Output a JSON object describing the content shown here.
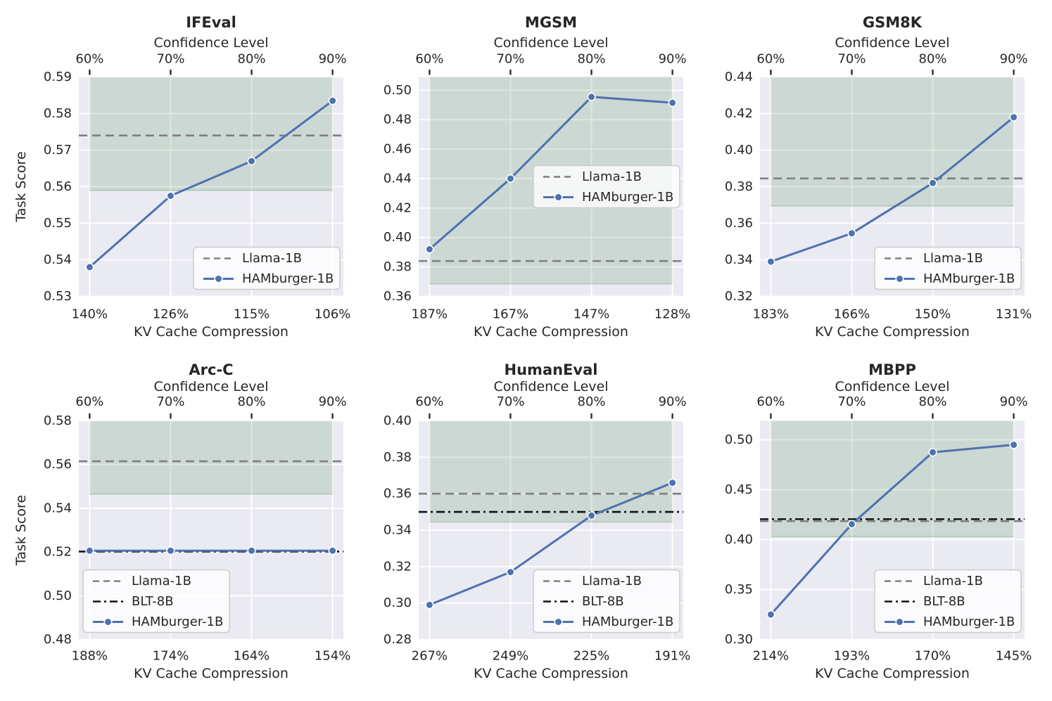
{
  "figure": {
    "ylabel": "Task Score",
    "top_axis_label": "Confidence Level",
    "bottom_axis_label": "KV Cache Compression",
    "confidence_levels": [
      "60%",
      "70%",
      "80%",
      "90%"
    ]
  },
  "colors": {
    "background": "#ffffff",
    "plot_background": "#eaeaf2",
    "grid": "#ffffff",
    "text": "#262626",
    "green_band_fill": "rgba(70,140,70,0.18)",
    "green_band_edge": "rgba(110,150,110,0.35)",
    "hamburger_blue": "#4c72b0",
    "marker_edge": "#ffffff",
    "llama_gray": "#7f7f7f",
    "blt_black": "#111111",
    "legend_background": "rgba(255,255,255,0.8)",
    "legend_border": "#cccccc",
    "tick_mark": "#262626"
  },
  "chart_data": [
    {
      "type": "line",
      "title": "IFEval",
      "top_axis_label": "Confidence Level",
      "top_ticks": [
        "60%",
        "70%",
        "80%",
        "90%"
      ],
      "bottom_axis_label": "KV Cache Compression",
      "bottom_ticks": [
        "140%",
        "126%",
        "115%",
        "106%"
      ],
      "ylabel": "Task Score",
      "show_ylabel": true,
      "ylim": [
        0.53,
        0.59
      ],
      "yticks": [
        "0.53",
        "0.54",
        "0.55",
        "0.56",
        "0.57",
        "0.58",
        "0.59"
      ],
      "green_band": {
        "ymin": 0.559,
        "ymax": 0.59
      },
      "series": [
        {
          "name": "Llama-1B",
          "style": "dashed",
          "color_key": "llama_gray",
          "value": 0.574
        },
        {
          "name": "HAMburger-1B",
          "style": "solid-marker",
          "color_key": "hamburger_blue",
          "x": [
            "60%",
            "70%",
            "80%",
            "90%"
          ],
          "values": [
            0.538,
            0.5575,
            0.567,
            0.5835
          ]
        }
      ],
      "legend": {
        "position": "lower-right",
        "entries": [
          "Llama-1B",
          "HAMburger-1B"
        ]
      }
    },
    {
      "type": "line",
      "title": "MGSM",
      "top_axis_label": "Confidence Level",
      "top_ticks": [
        "60%",
        "70%",
        "80%",
        "90%"
      ],
      "bottom_axis_label": "KV Cache Compression",
      "bottom_ticks": [
        "187%",
        "167%",
        "147%",
        "128%"
      ],
      "ylabel": "Task Score",
      "show_ylabel": false,
      "ylim": [
        0.36,
        0.509
      ],
      "yticks": [
        "0.36",
        "0.38",
        "0.40",
        "0.42",
        "0.44",
        "0.46",
        "0.48",
        "0.50"
      ],
      "green_band": {
        "ymin": 0.3685,
        "ymax": 0.509
      },
      "series": [
        {
          "name": "Llama-1B",
          "style": "dashed",
          "color_key": "llama_gray",
          "value": 0.384
        },
        {
          "name": "HAMburger-1B",
          "style": "solid-marker",
          "color_key": "hamburger_blue",
          "x": [
            "60%",
            "70%",
            "80%",
            "90%"
          ],
          "values": [
            0.392,
            0.44,
            0.4955,
            0.4915
          ]
        }
      ],
      "legend": {
        "position": "center-right",
        "entries": [
          "Llama-1B",
          "HAMburger-1B"
        ]
      }
    },
    {
      "type": "line",
      "title": "GSM8K",
      "top_axis_label": "Confidence Level",
      "top_ticks": [
        "60%",
        "70%",
        "80%",
        "90%"
      ],
      "bottom_axis_label": "KV Cache Compression",
      "bottom_ticks": [
        "183%",
        "166%",
        "150%",
        "131%"
      ],
      "ylabel": "Task Score",
      "show_ylabel": false,
      "ylim": [
        0.32,
        0.44
      ],
      "yticks": [
        "0.32",
        "0.34",
        "0.36",
        "0.38",
        "0.40",
        "0.42",
        "0.44"
      ],
      "green_band": {
        "ymin": 0.3695,
        "ymax": 0.44
      },
      "series": [
        {
          "name": "Llama-1B",
          "style": "dashed",
          "color_key": "llama_gray",
          "value": 0.3845
        },
        {
          "name": "HAMburger-1B",
          "style": "solid-marker",
          "color_key": "hamburger_blue",
          "x": [
            "60%",
            "70%",
            "80%",
            "90%"
          ],
          "values": [
            0.339,
            0.3545,
            0.382,
            0.418
          ]
        }
      ],
      "legend": {
        "position": "lower-right",
        "entries": [
          "Llama-1B",
          "HAMburger-1B"
        ]
      }
    },
    {
      "type": "line",
      "title": "Arc-C",
      "top_axis_label": "Confidence Level",
      "top_ticks": [
        "60%",
        "70%",
        "80%",
        "90%"
      ],
      "bottom_axis_label": "KV Cache Compression",
      "bottom_ticks": [
        "188%",
        "174%",
        "164%",
        "154%"
      ],
      "ylabel": "Task Score",
      "show_ylabel": true,
      "ylim": [
        0.48,
        0.58
      ],
      "yticks": [
        "0.48",
        "0.50",
        "0.52",
        "0.54",
        "0.56",
        "0.58"
      ],
      "green_band": {
        "ymin": 0.5465,
        "ymax": 0.58
      },
      "series": [
        {
          "name": "Llama-1B",
          "style": "dashed",
          "color_key": "llama_gray",
          "value": 0.5615
        },
        {
          "name": "BLT-8B",
          "style": "dashdot",
          "color_key": "blt_black",
          "value": 0.5202
        },
        {
          "name": "HAMburger-1B",
          "style": "solid-marker",
          "color_key": "hamburger_blue",
          "x": [
            "60%",
            "70%",
            "80%",
            "90%"
          ],
          "values": [
            0.5206,
            0.5206,
            0.5206,
            0.5206
          ]
        }
      ],
      "legend": {
        "position": "lower-left",
        "entries": [
          "Llama-1B",
          "BLT-8B",
          "HAMburger-1B"
        ]
      }
    },
    {
      "type": "line",
      "title": "HumanEval",
      "top_axis_label": "Confidence Level",
      "top_ticks": [
        "60%",
        "70%",
        "80%",
        "90%"
      ],
      "bottom_axis_label": "KV Cache Compression",
      "bottom_ticks": [
        "267%",
        "249%",
        "225%",
        "191%"
      ],
      "ylabel": "Task Score",
      "show_ylabel": false,
      "ylim": [
        0.28,
        0.4
      ],
      "yticks": [
        "0.28",
        "0.30",
        "0.32",
        "0.34",
        "0.36",
        "0.38",
        "0.40"
      ],
      "green_band": {
        "ymin": 0.3445,
        "ymax": 0.4
      },
      "series": [
        {
          "name": "Llama-1B",
          "style": "dashed",
          "color_key": "llama_gray",
          "value": 0.36
        },
        {
          "name": "BLT-8B",
          "style": "dashdot",
          "color_key": "blt_black",
          "value": 0.35
        },
        {
          "name": "HAMburger-1B",
          "style": "solid-marker",
          "color_key": "hamburger_blue",
          "x": [
            "60%",
            "70%",
            "80%",
            "90%"
          ],
          "values": [
            0.299,
            0.317,
            0.348,
            0.366
          ]
        }
      ],
      "legend": {
        "position": "lower-right",
        "entries": [
          "Llama-1B",
          "BLT-8B",
          "HAMburger-1B"
        ]
      }
    },
    {
      "type": "line",
      "title": "MBPP",
      "top_axis_label": "Confidence Level",
      "top_ticks": [
        "60%",
        "70%",
        "80%",
        "90%"
      ],
      "bottom_axis_label": "KV Cache Compression",
      "bottom_ticks": [
        "214%",
        "193%",
        "170%",
        "145%"
      ],
      "ylabel": "Task Score",
      "show_ylabel": false,
      "ylim": [
        0.3,
        0.519
      ],
      "yticks": [
        "0.30",
        "0.35",
        "0.40",
        "0.45",
        "0.50"
      ],
      "green_band": {
        "ymin": 0.403,
        "ymax": 0.519
      },
      "series": [
        {
          "name": "Llama-1B",
          "style": "dashed",
          "color_key": "llama_gray",
          "value": 0.4185
        },
        {
          "name": "BLT-8B",
          "style": "dashdot",
          "color_key": "blt_black",
          "value": 0.4205
        },
        {
          "name": "HAMburger-1B",
          "style": "solid-marker",
          "color_key": "hamburger_blue",
          "x": [
            "60%",
            "70%",
            "80%",
            "90%"
          ],
          "values": [
            0.325,
            0.4155,
            0.4875,
            0.495
          ]
        }
      ],
      "legend": {
        "position": "lower-right",
        "entries": [
          "Llama-1B",
          "BLT-8B",
          "HAMburger-1B"
        ]
      }
    }
  ]
}
